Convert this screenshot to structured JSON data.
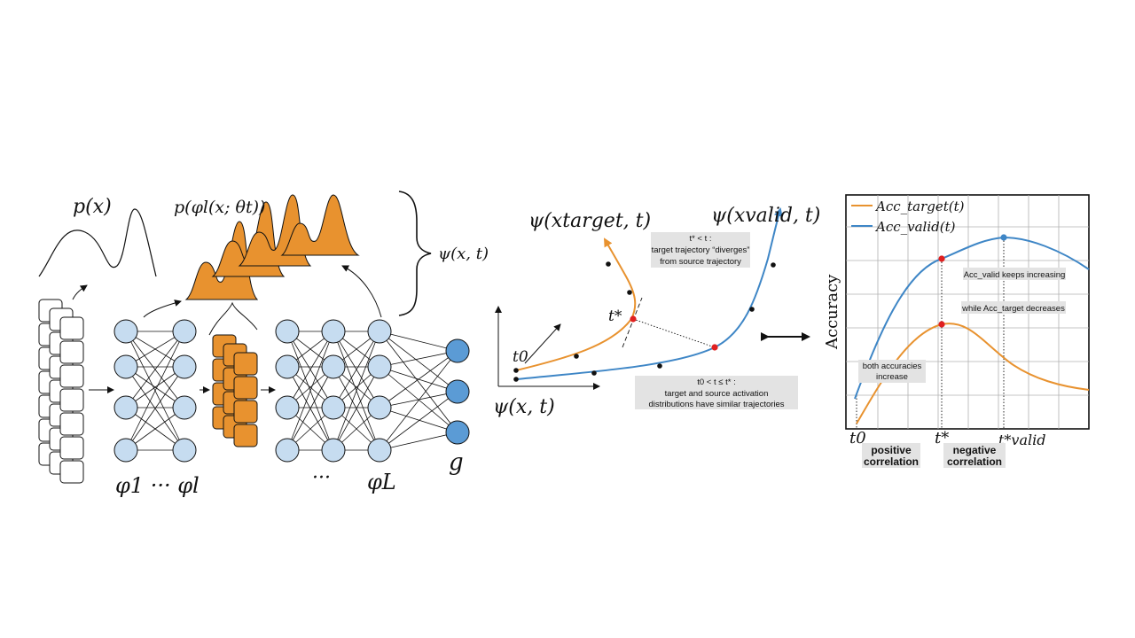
{
  "colors": {
    "target": "#e8922f",
    "valid": "#3e86c6",
    "neuron_fill": "#c6dcf0",
    "output_fill": "#5b9bd5",
    "highlight": "#e02020",
    "note_bg": "#e3e3e3"
  },
  "network": {
    "px_label": "p(x)",
    "pphi_label": "p(φl(x; θt))",
    "psi_label": "ψ(x, t)",
    "phi1_label": "φ1 ··· φl",
    "dots_label": "···",
    "phiL_label": "φL",
    "g_label": "g"
  },
  "trajectory": {
    "target_label": "ψ(xtarget, t)",
    "valid_label": "ψ(xvalid, t)",
    "axis_label": "ψ(x, t)",
    "t0_label": "t0",
    "tstar_label": "t*",
    "note_diverge": [
      "t* < t :",
      "target trajectory “diverges”",
      "from source trajectory"
    ],
    "note_similar": [
      "t0 < t ≤ t* :",
      "target and source activation",
      "distributions have similar trajectories"
    ]
  },
  "chart_data": {
    "type": "line",
    "ylabel": "Accuracy",
    "legend_position": "top-left",
    "grid": true,
    "series": [
      {
        "name": "Acc_target(t)",
        "color": "#e8922f"
      },
      {
        "name": "Acc_valid(t)",
        "color": "#3e86c6"
      }
    ],
    "x_tick_labels": [
      "t0",
      "t*",
      "t*valid"
    ],
    "annotations": {
      "keeps": "Acc_valid keeps increasing",
      "decreases": "while Acc_target decreases",
      "both": [
        "both accuracies",
        "increase"
      ],
      "positive": [
        "positive",
        "correlation"
      ],
      "negative": [
        "negative",
        "correlation"
      ]
    }
  }
}
